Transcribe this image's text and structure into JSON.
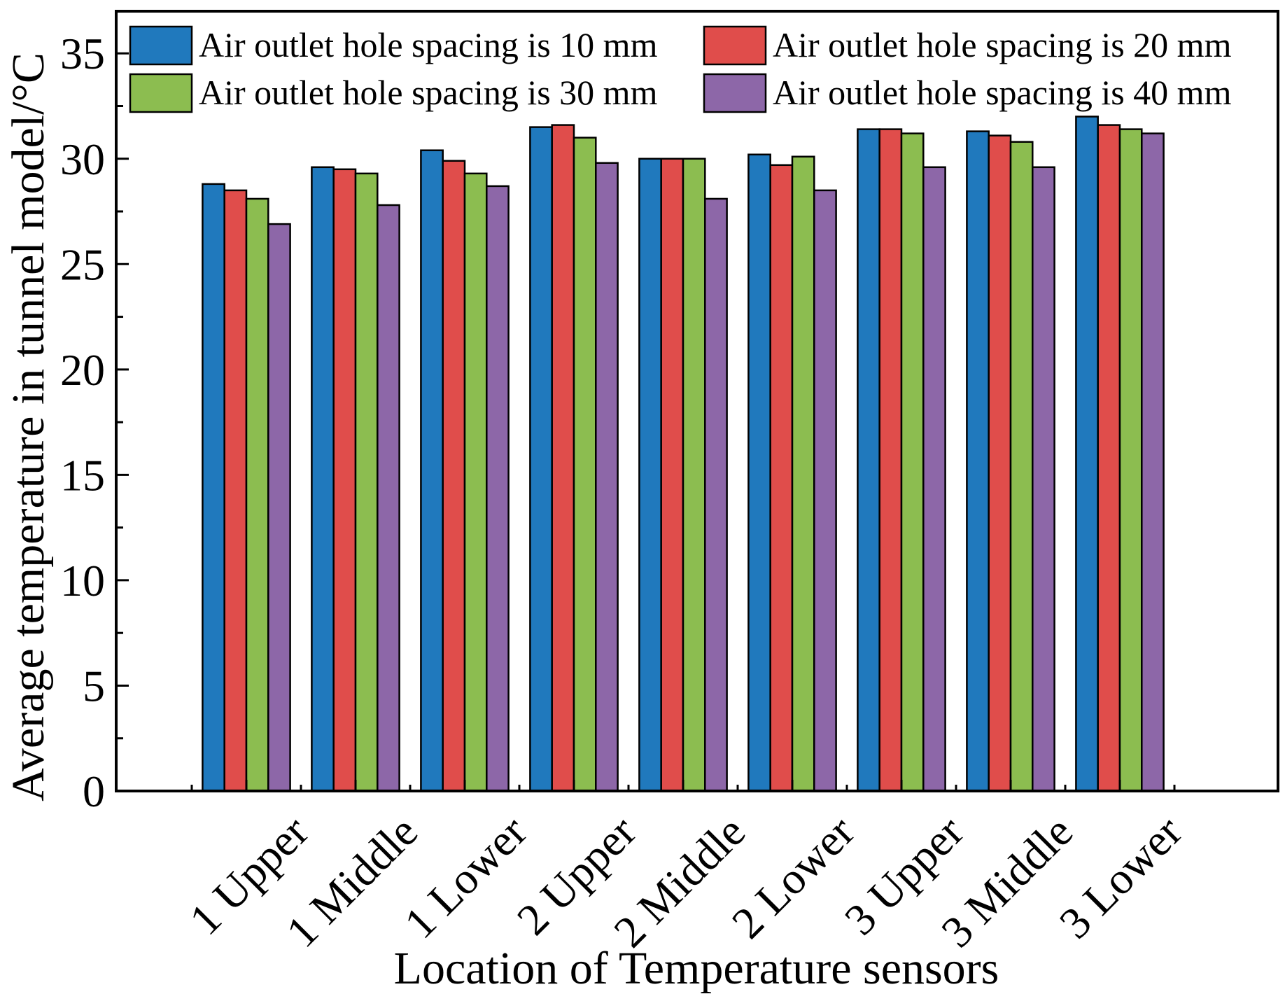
{
  "chart_data": {
    "type": "bar",
    "title": "",
    "xlabel": "Location of Temperature sensors",
    "ylabel": "Average temperature in tunnel model/°C",
    "ylim": [
      0,
      37
    ],
    "yticks": [
      0,
      5,
      10,
      15,
      20,
      25,
      30,
      35
    ],
    "ytick_labels": [
      "0",
      "5",
      "10",
      "15",
      "20",
      "25",
      "30",
      "35"
    ],
    "grid": false,
    "legend_position": "top",
    "categories": [
      "1 Upper",
      "1 Middle",
      "1 Lower",
      "2 Upper",
      "2 Middle",
      "2 Lower",
      "3 Upper",
      "3 Middle",
      "3 Lower"
    ],
    "series": [
      {
        "name": "Air outlet hole spacing is 10 mm",
        "color": "#2079bd",
        "values": [
          28.8,
          29.6,
          30.4,
          31.5,
          30.0,
          30.2,
          31.4,
          31.3,
          32.0
        ]
      },
      {
        "name": "Air outlet hole spacing is 20 mm",
        "color": "#e04d4b",
        "values": [
          28.5,
          29.5,
          29.9,
          31.6,
          30.0,
          29.7,
          31.4,
          31.1,
          31.6
        ]
      },
      {
        "name": "Air outlet hole spacing is 30 mm",
        "color": "#8cbd50",
        "values": [
          28.1,
          29.3,
          29.3,
          31.0,
          30.0,
          30.1,
          31.2,
          30.8,
          31.4
        ]
      },
      {
        "name": "Air outlet hole spacing is 40 mm",
        "color": "#8d67a8",
        "values": [
          26.9,
          27.8,
          28.7,
          29.8,
          28.1,
          28.5,
          29.6,
          29.6,
          31.2
        ]
      }
    ]
  }
}
